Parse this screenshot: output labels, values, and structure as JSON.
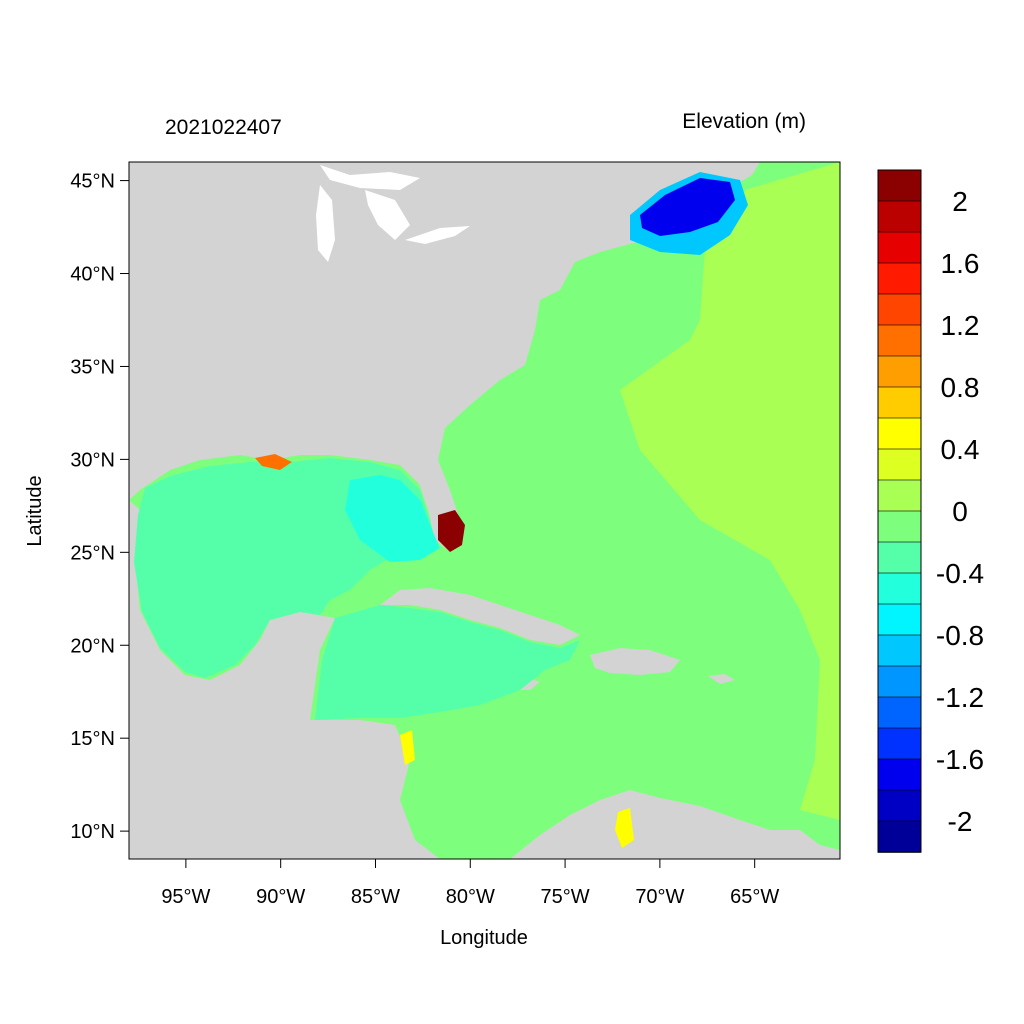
{
  "header": {
    "timestamp": "2021022407",
    "colorbar_title": "Elevation (m)"
  },
  "axes": {
    "xlabel": "Longitude",
    "ylabel": "Latitude",
    "xlim": [
      -98,
      -60.5
    ],
    "ylim": [
      8.5,
      46
    ],
    "xticks": [
      {
        "value": -95,
        "label": "95°W"
      },
      {
        "value": -90,
        "label": "90°W"
      },
      {
        "value": -85,
        "label": "85°W"
      },
      {
        "value": -80,
        "label": "80°W"
      },
      {
        "value": -75,
        "label": "75°W"
      },
      {
        "value": -70,
        "label": "70°W"
      },
      {
        "value": -65,
        "label": "65°W"
      }
    ],
    "yticks": [
      {
        "value": 45,
        "label": "45°N"
      },
      {
        "value": 40,
        "label": "40°N"
      },
      {
        "value": 35,
        "label": "35°N"
      },
      {
        "value": 30,
        "label": "30°N"
      },
      {
        "value": 25,
        "label": "25°N"
      },
      {
        "value": 20,
        "label": "20°N"
      },
      {
        "value": 15,
        "label": "15°N"
      },
      {
        "value": 10,
        "label": "10°N"
      }
    ]
  },
  "colorbar": {
    "colors_top_to_bottom": [
      "#8b0000",
      "#bb0000",
      "#e60000",
      "#ff1a00",
      "#ff4500",
      "#ff7000",
      "#ff9e00",
      "#ffcc00",
      "#ffff00",
      "#ddff22",
      "#aaff55",
      "#7dff7d",
      "#55ffaa",
      "#22ffdd",
      "#00f5ff",
      "#00c8ff",
      "#0096ff",
      "#0064ff",
      "#0032ff",
      "#0000ee",
      "#0000c4",
      "#000099"
    ],
    "tick_labels": [
      {
        "label": "2",
        "value": 2
      },
      {
        "label": "1.6",
        "value": 1.6
      },
      {
        "label": "1.2",
        "value": 1.2
      },
      {
        "label": "0.8",
        "value": 0.8
      },
      {
        "label": "0.4",
        "value": 0.4
      },
      {
        "label": "0",
        "value": 0
      },
      {
        "label": "-0.4",
        "value": -0.4
      },
      {
        "label": "-0.8",
        "value": -0.8
      },
      {
        "label": "-1.2",
        "value": -1.2
      },
      {
        "label": "-1.6",
        "value": -1.6
      },
      {
        "label": "-2",
        "value": -2
      }
    ]
  },
  "map_colors": {
    "land": "#d3d3d3",
    "lakes": "#ffffff",
    "gulf_water": "#55ffaa",
    "atlantic_water": "#7dff7d",
    "east_atlantic": "#aaff55",
    "gulf_of_maine": "#0000ee",
    "florida_surge": "#8b0000"
  }
}
